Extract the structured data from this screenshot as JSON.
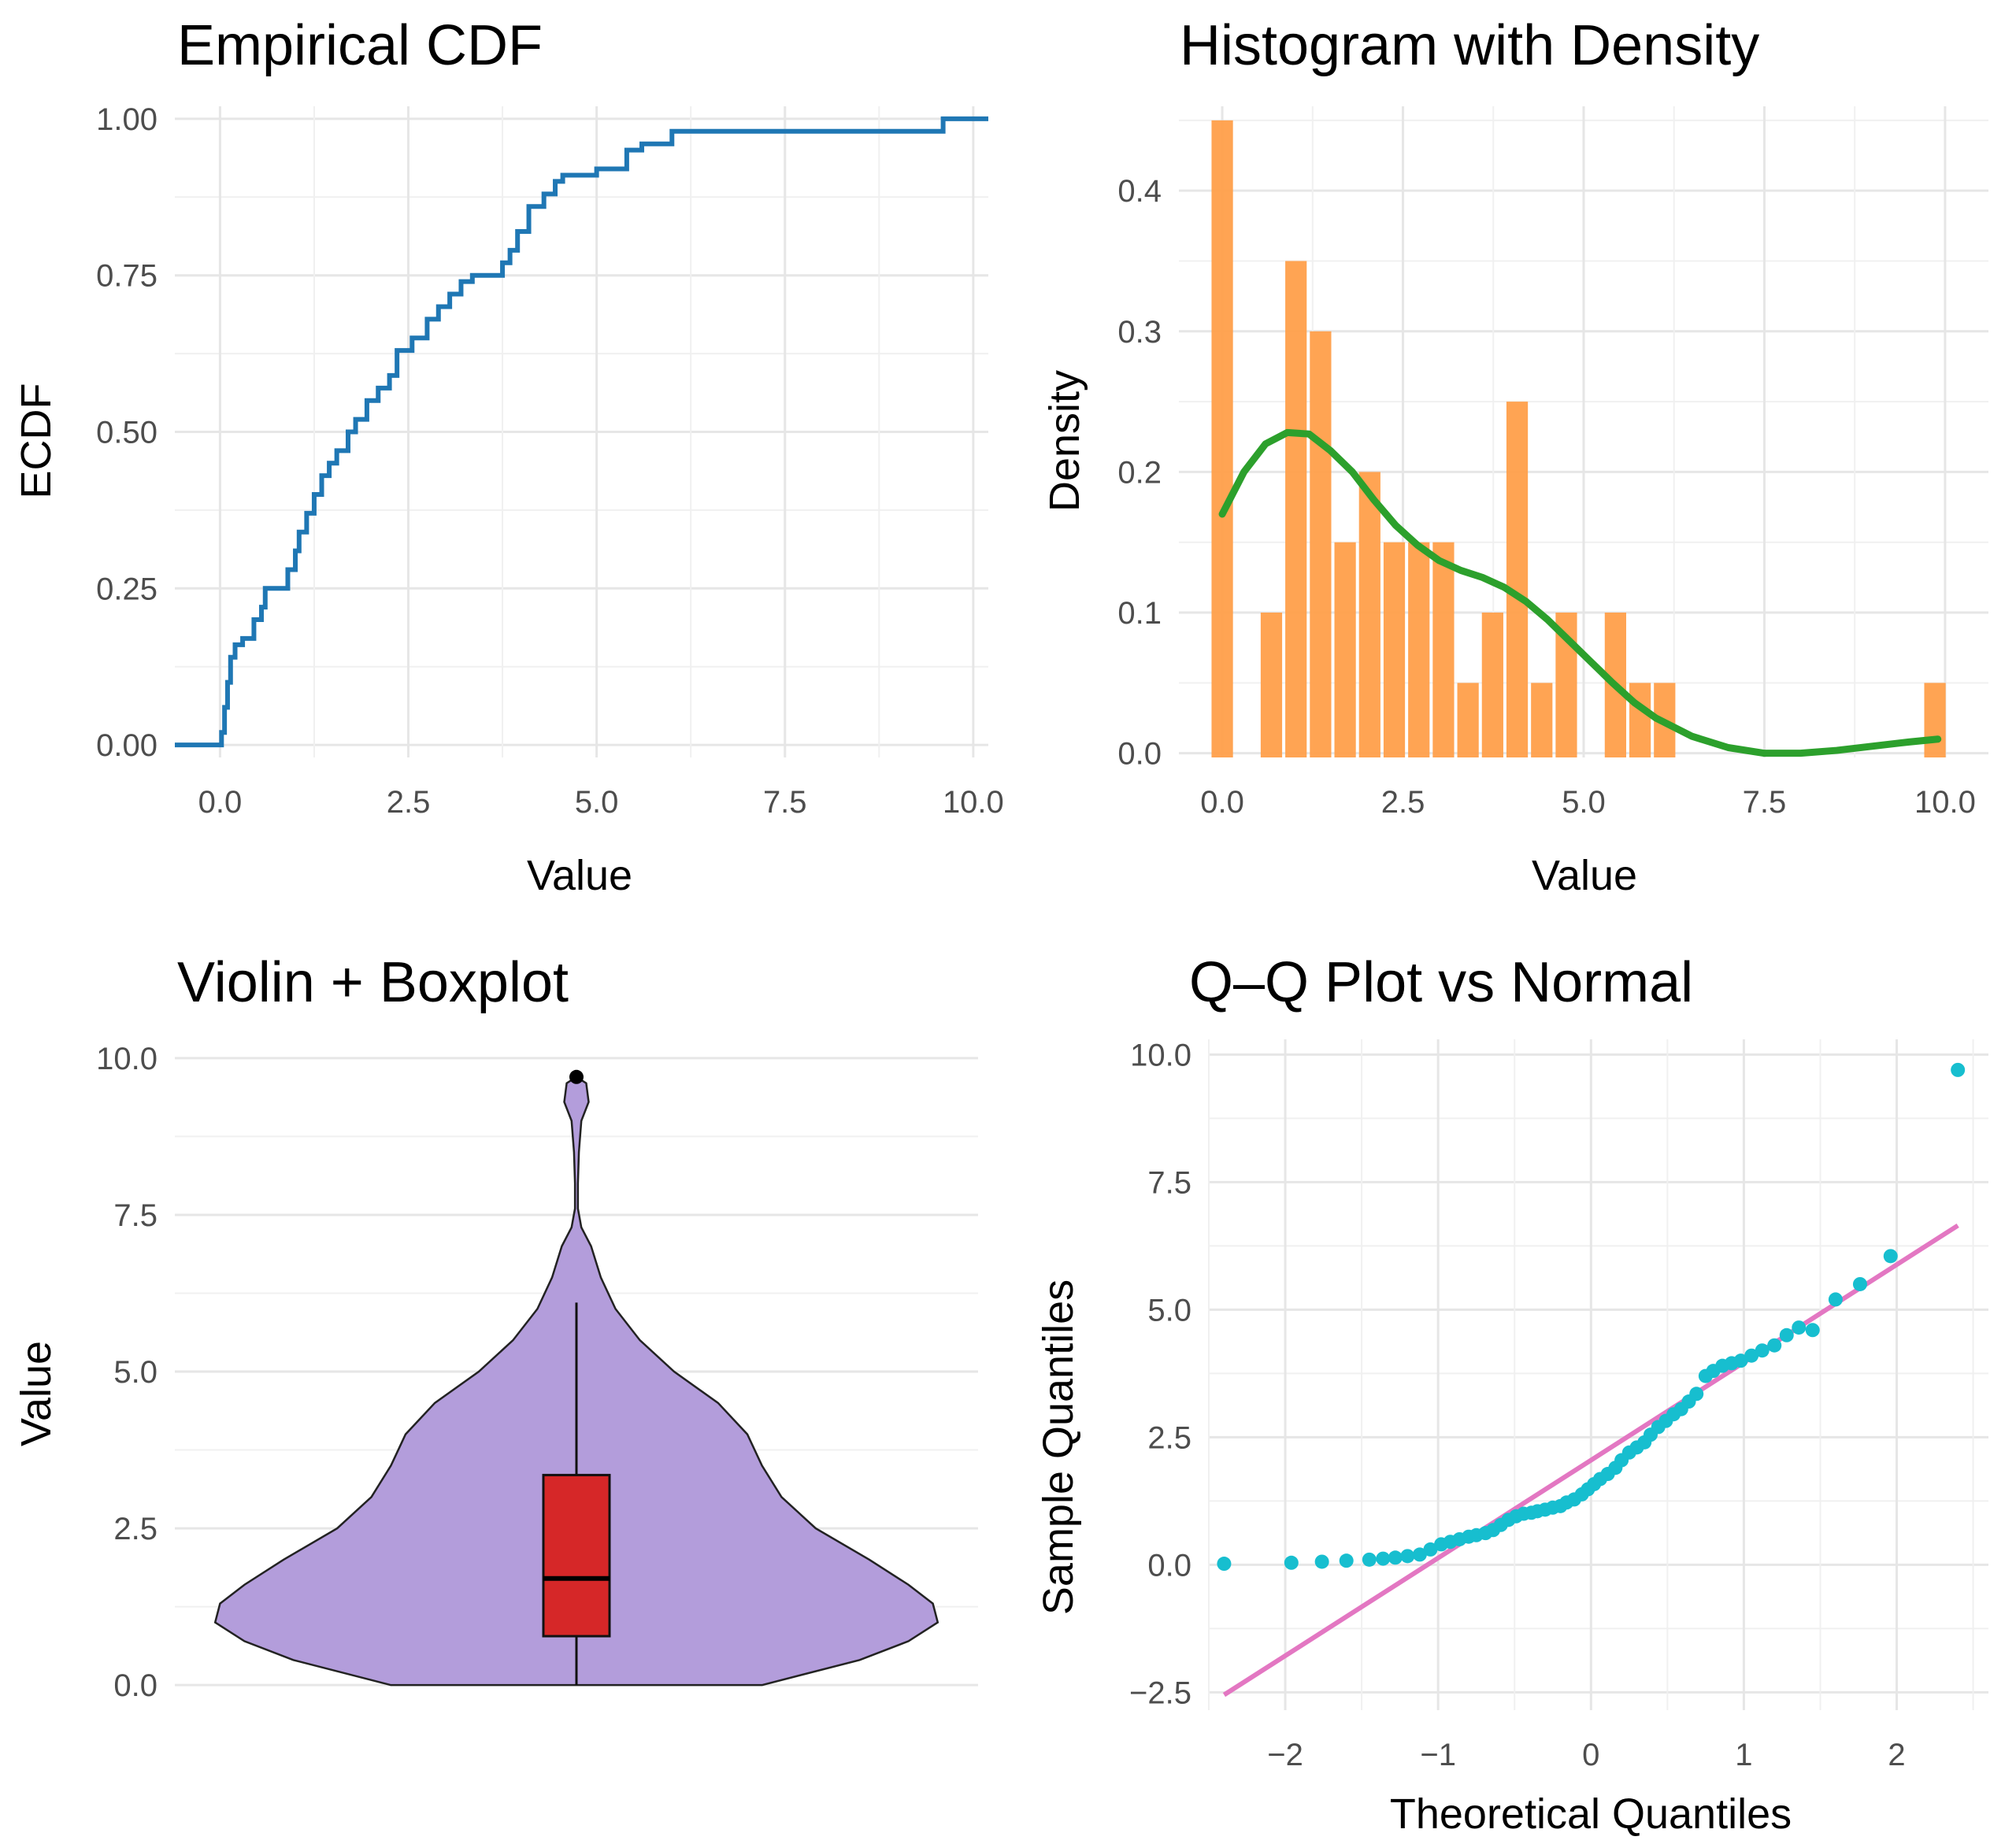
{
  "chart_data": [
    {
      "type": "line",
      "subtype": "ecdf",
      "title": "Empirical CDF",
      "xlabel": "Value",
      "ylabel": "ECDF",
      "xlim": [
        -0.6,
        10.2
      ],
      "ylim": [
        -0.02,
        1.02
      ],
      "xticks": [
        0,
        2.5,
        5,
        7.5,
        10
      ],
      "xtick_labels": [
        "0.0",
        "2.5",
        "5.0",
        "7.5",
        "10.0"
      ],
      "yticks": [
        0,
        0.25,
        0.5,
        0.75,
        1
      ],
      "ytick_labels": [
        "0.00",
        "0.25",
        "0.50",
        "0.75",
        "1.00"
      ],
      "color": "#1f77b4",
      "x": [
        -0.6,
        0.02,
        0.06,
        0.1,
        0.14,
        0.2,
        0.3,
        0.45,
        0.55,
        0.6,
        0.9,
        1.0,
        1.05,
        1.15,
        1.25,
        1.35,
        1.45,
        1.55,
        1.7,
        1.8,
        1.95,
        2.1,
        2.25,
        2.35,
        2.55,
        2.75,
        2.9,
        3.05,
        3.2,
        3.35,
        3.75,
        3.85,
        3.95,
        4.1,
        4.3,
        4.45,
        4.55,
        5.0,
        5.4,
        5.6,
        6.0,
        9.6,
        10.2
      ],
      "y": [
        0,
        0.02,
        0.06,
        0.1,
        0.14,
        0.16,
        0.17,
        0.2,
        0.22,
        0.25,
        0.28,
        0.31,
        0.34,
        0.37,
        0.4,
        0.43,
        0.45,
        0.47,
        0.5,
        0.52,
        0.55,
        0.57,
        0.59,
        0.63,
        0.65,
        0.68,
        0.7,
        0.72,
        0.74,
        0.75,
        0.77,
        0.79,
        0.82,
        0.86,
        0.88,
        0.9,
        0.91,
        0.92,
        0.95,
        0.96,
        0.98,
        1.0,
        1.0
      ]
    },
    {
      "type": "bar",
      "subtype": "histogram_with_density",
      "title": "Histogram with Density",
      "xlabel": "Value",
      "ylabel": "Density",
      "xlim": [
        -0.6,
        10.6
      ],
      "ylim": [
        -0.003,
        0.46
      ],
      "xticks": [
        0,
        2.5,
        5,
        7.5,
        10
      ],
      "xtick_labels": [
        "0.0",
        "2.5",
        "5.0",
        "7.5",
        "10.0"
      ],
      "yticks": [
        0,
        0.1,
        0.2,
        0.3,
        0.4
      ],
      "ytick_labels": [
        "0.0",
        "0.1",
        "0.2",
        "0.3",
        "0.4"
      ],
      "bar_color": "#ff9f4a",
      "density_color": "#2ca02c",
      "bin_width": 0.34,
      "bin_centers": [
        0.0,
        0.34,
        0.68,
        1.02,
        1.36,
        1.7,
        2.04,
        2.38,
        2.72,
        3.06,
        3.4,
        3.74,
        4.08,
        4.42,
        4.76,
        5.1,
        5.44,
        5.78,
        6.12,
        9.86
      ],
      "values": [
        0.45,
        0.0,
        0.1,
        0.35,
        0.3,
        0.15,
        0.2,
        0.15,
        0.15,
        0.15,
        0.05,
        0.1,
        0.25,
        0.05,
        0.1,
        0.0,
        0.1,
        0.05,
        0.05,
        0.05
      ],
      "density_x": [
        0.0,
        0.3,
        0.6,
        0.9,
        1.2,
        1.5,
        1.8,
        2.1,
        2.4,
        2.7,
        3.0,
        3.3,
        3.6,
        3.9,
        4.2,
        4.5,
        4.8,
        5.1,
        5.4,
        5.7,
        6.0,
        6.5,
        7.0,
        7.5,
        8.0,
        8.5,
        9.0,
        9.5,
        9.9
      ],
      "density_y": [
        0.17,
        0.2,
        0.22,
        0.228,
        0.227,
        0.215,
        0.2,
        0.18,
        0.162,
        0.148,
        0.137,
        0.13,
        0.125,
        0.118,
        0.108,
        0.095,
        0.08,
        0.065,
        0.05,
        0.036,
        0.025,
        0.012,
        0.004,
        0.0,
        0.0,
        0.002,
        0.005,
        0.008,
        0.01
      ]
    },
    {
      "type": "violin",
      "subtype": "violin_with_boxplot",
      "title": "Violin + Boxplot",
      "xlabel": "",
      "ylabel": "Value",
      "ylim": [
        -0.4,
        10.3
      ],
      "yticks": [
        0,
        2.5,
        5,
        7.5,
        10
      ],
      "ytick_labels": [
        "0.0",
        "2.5",
        "5.0",
        "7.5",
        "10.0"
      ],
      "violin_color": "#b39ddb",
      "box_color": "#d62728",
      "violin_profile_y": [
        0.0,
        0.4,
        0.7,
        1.0,
        1.3,
        1.6,
        2.0,
        2.5,
        3.0,
        3.5,
        4.0,
        4.5,
        5.0,
        5.5,
        6.0,
        6.5,
        7.0,
        7.3,
        7.6,
        8.0,
        8.5,
        9.0,
        9.3,
        9.6,
        9.7
      ],
      "violin_profile_halfwidth": [
        0.38,
        0.58,
        0.68,
        0.74,
        0.73,
        0.68,
        0.6,
        0.49,
        0.42,
        0.38,
        0.35,
        0.29,
        0.2,
        0.13,
        0.08,
        0.05,
        0.03,
        0.01,
        0.003,
        0.003,
        0.005,
        0.01,
        0.025,
        0.02,
        0.0
      ],
      "box": {
        "lower_whisker": 0.0,
        "q1": 0.78,
        "median": 1.7,
        "q3": 3.35,
        "upper_whisker": 6.1,
        "outlier": 9.7
      }
    },
    {
      "type": "scatter",
      "subtype": "qq_plot",
      "title": "Q–Q Plot vs Normal",
      "xlabel": "Theoretical Quantiles",
      "ylabel": "Sample Quantiles",
      "xlim": [
        -2.5,
        2.6
      ],
      "ylim": [
        -2.85,
        10.3
      ],
      "xticks": [
        -2,
        -1,
        0,
        1,
        2
      ],
      "xtick_labels": [
        "−2",
        "−1",
        "0",
        "1",
        "2"
      ],
      "yticks": [
        -2.5,
        0,
        2.5,
        5,
        7.5,
        10
      ],
      "ytick_labels": [
        "−2.5",
        "0.0",
        "2.5",
        "5.0",
        "7.5",
        "10.0"
      ],
      "point_color": "#17becf",
      "line_color": "#e377c2",
      "line": {
        "x": [
          -2.4,
          2.4
        ],
        "y": [
          -2.55,
          6.65
        ]
      },
      "x": [
        -2.4,
        -1.96,
        -1.76,
        -1.6,
        -1.45,
        -1.36,
        -1.28,
        -1.2,
        -1.12,
        -1.05,
        -0.98,
        -0.92,
        -0.86,
        -0.8,
        -0.75,
        -0.69,
        -0.64,
        -0.59,
        -0.54,
        -0.49,
        -0.44,
        -0.39,
        -0.35,
        -0.3,
        -0.25,
        -0.2,
        -0.16,
        -0.11,
        -0.06,
        -0.02,
        0.02,
        0.06,
        0.11,
        0.16,
        0.2,
        0.25,
        0.3,
        0.35,
        0.39,
        0.44,
        0.49,
        0.54,
        0.59,
        0.64,
        0.69,
        0.75,
        0.8,
        0.86,
        0.92,
        0.98,
        1.05,
        1.12,
        1.2,
        1.28,
        1.36,
        1.45,
        1.6,
        1.76,
        1.96,
        2.4
      ],
      "y": [
        0.02,
        0.04,
        0.06,
        0.08,
        0.1,
        0.12,
        0.14,
        0.17,
        0.2,
        0.3,
        0.4,
        0.45,
        0.5,
        0.55,
        0.58,
        0.62,
        0.68,
        0.78,
        0.88,
        0.95,
        1.0,
        1.02,
        1.05,
        1.08,
        1.12,
        1.15,
        1.22,
        1.28,
        1.38,
        1.48,
        1.58,
        1.68,
        1.78,
        1.9,
        2.05,
        2.2,
        2.3,
        2.4,
        2.55,
        2.7,
        2.82,
        2.95,
        3.05,
        3.2,
        3.35,
        3.7,
        3.8,
        3.9,
        3.95,
        4.0,
        4.1,
        4.2,
        4.3,
        4.5,
        4.65,
        4.6,
        5.2,
        5.5,
        6.05,
        9.7
      ]
    }
  ]
}
